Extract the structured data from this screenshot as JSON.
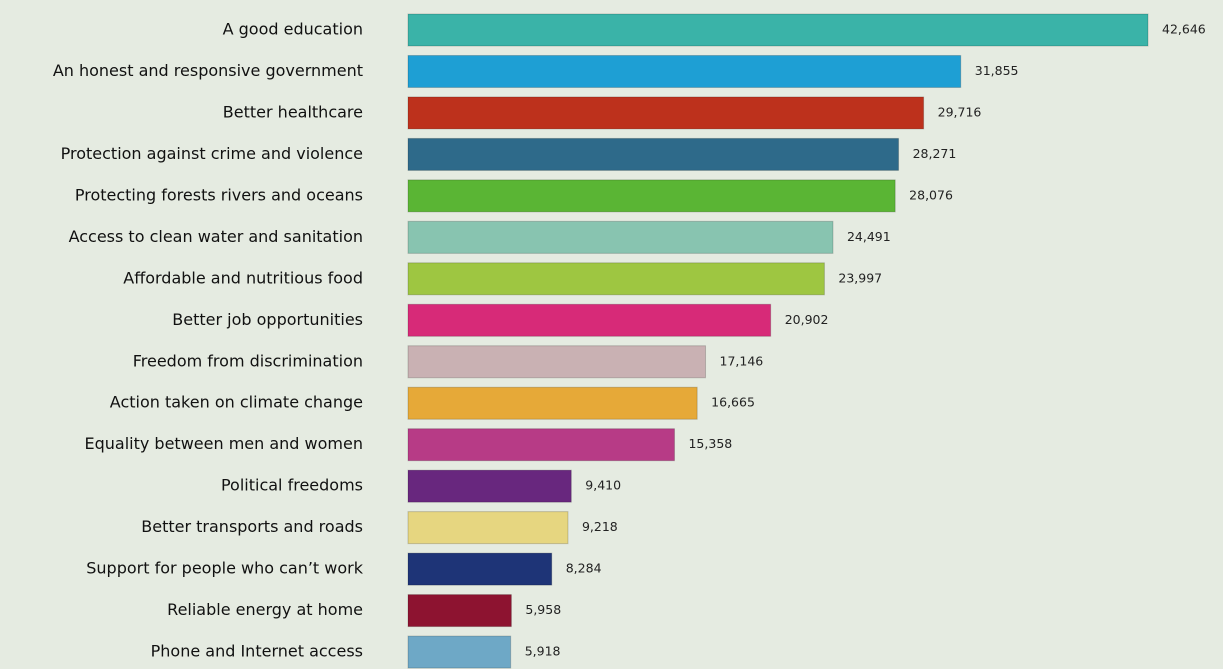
{
  "chart_data": {
    "type": "bar",
    "orientation": "horizontal",
    "categories": [
      "A good education",
      "An honest and responsive government",
      "Better healthcare",
      "Protection against crime and violence",
      "Protecting forests rivers and oceans",
      "Access to clean water and sanitation",
      "Affordable and nutritious food",
      "Better job opportunities",
      "Freedom from discrimination",
      "Action taken on climate change",
      "Equality between men and women",
      "Political freedoms",
      "Better transports and roads",
      "Support for people who can’t work",
      "Reliable energy at home",
      "Phone and Internet access"
    ],
    "values": [
      42646,
      31855,
      29716,
      28271,
      28076,
      24491,
      23997,
      20902,
      17146,
      16665,
      15358,
      9410,
      9218,
      8284,
      5958,
      5918
    ],
    "value_labels": [
      "42,646",
      "31,855",
      "29,716",
      "28,271",
      "28,076",
      "24,491",
      "23,997",
      "20,902",
      "17,146",
      "16,665",
      "15,358",
      "9,410",
      "9,218",
      "8,284",
      "5,958",
      "5,918"
    ],
    "colors": [
      "#3ab3a8",
      "#1e9fd4",
      "#bd311c",
      "#2e6a8a",
      "#5ab534",
      "#88c4b0",
      "#9ec641",
      "#d72a78",
      "#c9b1b3",
      "#e6a938",
      "#b73b86",
      "#68277e",
      "#e6d680",
      "#1e3477",
      "#8d1330",
      "#6ea8c6"
    ]
  }
}
